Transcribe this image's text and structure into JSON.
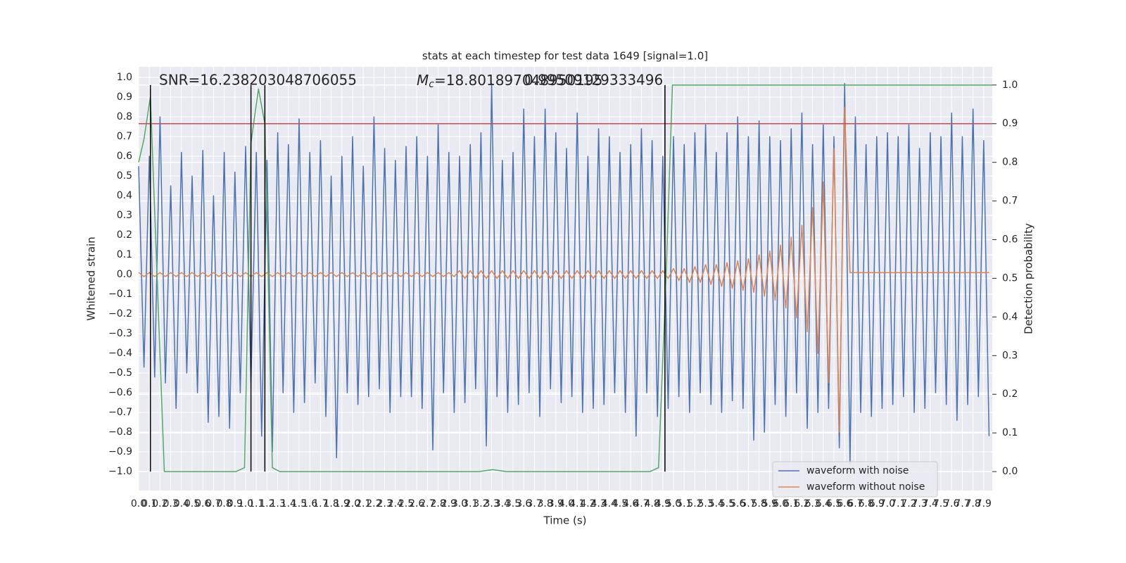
{
  "chart_data": {
    "type": "line",
    "title": "stats at each timestep for test data 1649 [signal=1.0]",
    "xlabel": "Time (s)",
    "ylabel": "Whitened strain",
    "y2label": "Detection probability",
    "annotations": [
      {
        "text": "SNR=16.238203048706055"
      },
      {
        "symbol": "M",
        "subscript": "c",
        "text": "=18.801897048950195"
      },
      {
        "text": "0.99509129333496"
      }
    ],
    "xlim": [
      0,
      7.98
    ],
    "ylim": [
      -1.096,
      1.054
    ],
    "y2lim": [
      -0.049,
      1.047
    ],
    "grid": true,
    "legend": "lower right",
    "xticks": [
      {
        "value": 0,
        "label": "0.0"
      },
      0.1,
      0.2,
      0.3,
      0.4,
      0.5,
      0.6,
      0.7,
      0.8,
      0.9,
      {
        "value": 1,
        "label": "1.0"
      },
      1.1,
      1.2,
      1.3,
      1.4,
      1.5,
      1.6,
      1.7,
      1.8,
      1.9,
      {
        "value": 2,
        "label": "2.0"
      },
      2.1,
      2.2,
      2.3,
      2.4,
      2.5,
      2.6,
      2.7,
      2.8,
      2.9,
      {
        "value": 3,
        "label": "3.0"
      },
      3.1,
      3.2,
      3.3,
      3.4,
      3.5,
      3.6,
      3.7,
      3.8,
      3.9,
      {
        "value": 4,
        "label": "4.0"
      },
      4.1,
      4.2,
      4.3,
      4.4,
      4.5,
      4.6,
      4.7,
      4.8,
      4.9,
      {
        "value": 5,
        "label": "5.0"
      },
      5.1,
      5.2,
      5.3,
      5.4,
      5.5,
      5.6,
      5.7,
      5.8,
      5.9,
      {
        "value": 6,
        "label": "6.0"
      },
      6.1,
      6.2,
      6.3,
      6.4,
      6.5,
      6.6,
      6.7,
      6.8,
      6.9,
      {
        "value": 7,
        "label": "7.0"
      },
      7.1,
      7.2,
      7.3,
      7.4,
      7.5,
      7.6,
      7.7,
      7.8,
      7.9
    ],
    "yticks": [
      {
        "value": -1,
        "label": "−1.0"
      },
      {
        "value": -0.9,
        "label": "−0.9"
      },
      {
        "value": -0.8,
        "label": "−0.8"
      },
      {
        "value": -0.7,
        "label": "−0.7"
      },
      {
        "value": -0.6,
        "label": "−0.6"
      },
      {
        "value": -0.5,
        "label": "−0.5"
      },
      {
        "value": -0.4,
        "label": "−0.4"
      },
      {
        "value": -0.3,
        "label": "−0.3"
      },
      {
        "value": -0.2,
        "label": "−0.2"
      },
      {
        "value": -0.1,
        "label": "−0.1"
      },
      {
        "value": 0,
        "label": "0.0"
      },
      0.1,
      0.2,
      0.3,
      0.4,
      0.5,
      0.6,
      0.7,
      0.8,
      0.9,
      {
        "value": 1,
        "label": "1.0"
      }
    ],
    "y2ticks": [
      {
        "value": 0,
        "label": "0.0"
      },
      0.1,
      0.2,
      0.3,
      0.4,
      0.5,
      0.6,
      0.7,
      0.8,
      0.9,
      {
        "value": 1,
        "label": "1.0"
      }
    ],
    "x": [
      0,
      0.05,
      0.1,
      0.15,
      0.2,
      0.25,
      0.3,
      0.35,
      0.4,
      0.45,
      0.5,
      0.55,
      0.6,
      0.65,
      0.7,
      0.75,
      0.8,
      0.85,
      0.9,
      0.95,
      1,
      1.05,
      1.1,
      1.15,
      1.2,
      1.25,
      1.3,
      1.35,
      1.4,
      1.45,
      1.5,
      1.55,
      1.6,
      1.65,
      1.7,
      1.75,
      1.8,
      1.85,
      1.9,
      1.95,
      2,
      2.05,
      2.1,
      2.15,
      2.2,
      2.25,
      2.3,
      2.35,
      2.4,
      2.45,
      2.5,
      2.55,
      2.6,
      2.65,
      2.7,
      2.75,
      2.8,
      2.85,
      2.9,
      2.95,
      3,
      3.05,
      3.1,
      3.15,
      3.2,
      3.25,
      3.3,
      3.35,
      3.4,
      3.45,
      3.5,
      3.55,
      3.6,
      3.65,
      3.7,
      3.75,
      3.8,
      3.85,
      3.9,
      3.95,
      4,
      4.05,
      4.1,
      4.15,
      4.2,
      4.25,
      4.3,
      4.35,
      4.4,
      4.45,
      4.5,
      4.55,
      4.6,
      4.65,
      4.7,
      4.75,
      4.8,
      4.85,
      4.9,
      4.95,
      5,
      5.05,
      5.1,
      5.15,
      5.2,
      5.25,
      5.3,
      5.35,
      5.4,
      5.45,
      5.5,
      5.55,
      5.6,
      5.65,
      5.7,
      5.75,
      5.8,
      5.85,
      5.9,
      5.95,
      6,
      6.05,
      6.1,
      6.15,
      6.2,
      6.25,
      6.3,
      6.35,
      6.4,
      6.45,
      6.5,
      6.55,
      6.6,
      6.65,
      6.7,
      6.75,
      6.8,
      6.85,
      6.9,
      6.95,
      7,
      7.05,
      7.1,
      7.15,
      7.2,
      7.25,
      7.3,
      7.35,
      7.4,
      7.45,
      7.5,
      7.55,
      7.6,
      7.65,
      7.7,
      7.75,
      7.8,
      7.85,
      7.9,
      7.95
    ],
    "series": [
      {
        "name": "waveform with noise",
        "color": "#4c72b0",
        "values": [
          0.55,
          -0.47,
          0.6,
          -0.52,
          0.8,
          -0.55,
          0.45,
          -0.68,
          0.62,
          -0.5,
          0.5,
          -0.6,
          0.63,
          -0.75,
          0.4,
          -0.72,
          0.62,
          -0.78,
          0.52,
          -0.6,
          0.65,
          -0.55,
          0.62,
          -0.82,
          0.58,
          -0.9,
          0.72,
          -0.6,
          0.66,
          -0.7,
          0.79,
          -0.65,
          0.62,
          -0.55,
          0.68,
          -0.72,
          0.5,
          -0.93,
          0.6,
          -0.6,
          0.7,
          -0.66,
          0.55,
          -0.62,
          0.8,
          -0.58,
          0.64,
          -0.7,
          0.58,
          -0.62,
          0.65,
          -0.62,
          0.7,
          -0.68,
          0.6,
          -0.89,
          0.76,
          -0.6,
          0.62,
          -0.7,
          0.6,
          -0.65,
          0.66,
          -0.58,
          0.72,
          -0.87,
          0.97,
          -0.62,
          0.58,
          -0.7,
          0.62,
          -0.66,
          0.84,
          -0.6,
          0.7,
          -0.72,
          0.84,
          -0.58,
          0.72,
          -0.65,
          0.64,
          -0.62,
          0.82,
          -0.7,
          0.6,
          -0.68,
          0.74,
          -0.66,
          0.7,
          -0.6,
          0.62,
          -0.7,
          0.66,
          -0.82,
          0.74,
          -0.6,
          0.68,
          -0.72,
          0.6,
          -0.68,
          0.7,
          -0.62,
          0.66,
          -0.7,
          0.72,
          -0.6,
          0.76,
          -0.66,
          0.62,
          -0.7,
          0.72,
          -0.64,
          0.8,
          -0.68,
          0.7,
          -0.84,
          0.78,
          -0.8,
          0.7,
          -0.66,
          0.68,
          -0.72,
          0.74,
          -0.6,
          0.82,
          -0.78,
          0.66,
          -0.7,
          0.76,
          -0.68,
          0.7,
          -0.88,
          0.97,
          -0.96,
          0.8,
          -0.7,
          0.66,
          -0.72,
          0.7,
          -0.68,
          0.72,
          -0.66,
          0.7,
          -0.62,
          0.76,
          -0.7,
          0.64,
          -0.68,
          0.72,
          -0.6,
          0.7,
          -0.66,
          0.82,
          -0.74,
          0.7,
          -0.66,
          0.84,
          -0.62,
          0.68,
          -0.82
        ]
      },
      {
        "name": "waveform without noise",
        "color": "#dd8452",
        "values": [
          0.01,
          -0.01,
          0.01,
          -0.01,
          0.01,
          -0.01,
          0.01,
          -0.01,
          0.01,
          -0.01,
          0.01,
          -0.01,
          0.01,
          -0.01,
          0.01,
          -0.01,
          0.01,
          -0.01,
          0.01,
          -0.01,
          0.01,
          -0.01,
          0.01,
          -0.01,
          0.01,
          -0.01,
          0.01,
          -0.01,
          0.01,
          -0.01,
          0.01,
          -0.01,
          0.01,
          -0.01,
          0.01,
          -0.01,
          0.01,
          -0.01,
          0.01,
          -0.01,
          0.01,
          -0.01,
          0.01,
          -0.01,
          0.01,
          -0.01,
          0.01,
          -0.01,
          0.01,
          -0.01,
          0.01,
          -0.01,
          0.01,
          -0.01,
          0.01,
          -0.01,
          0.01,
          -0.01,
          0.01,
          -0.01,
          0.02,
          -0.02,
          0.02,
          -0.02,
          0.02,
          -0.02,
          0.02,
          -0.02,
          0.02,
          -0.02,
          0.02,
          -0.02,
          0.02,
          -0.02,
          0.02,
          -0.02,
          0.02,
          -0.02,
          0.02,
          -0.02,
          0.02,
          -0.02,
          0.02,
          -0.02,
          0.02,
          -0.02,
          0.02,
          -0.02,
          0.02,
          -0.02,
          0.02,
          -0.02,
          0.02,
          -0.02,
          0.02,
          -0.02,
          0.02,
          -0.02,
          0.02,
          -0.02,
          0.03,
          -0.03,
          0.03,
          -0.04,
          0.04,
          -0.04,
          0.05,
          -0.05,
          0.05,
          -0.06,
          0.06,
          -0.07,
          0.07,
          -0.08,
          0.08,
          -0.09,
          0.1,
          -0.11,
          0.12,
          -0.13,
          0.15,
          -0.17,
          0.19,
          -0.22,
          0.25,
          -0.29,
          0.34,
          -0.4,
          0.47,
          -0.55,
          0.64,
          -0.8,
          0.85,
          0.01,
          0.01,
          0.01,
          0.01,
          0.01,
          0.01,
          0.01,
          0.01,
          0.01,
          0.01,
          0.01,
          0.01,
          0.01,
          0.01,
          0.01,
          0.01,
          0.01,
          0.01,
          0.01,
          0.01,
          0.01,
          0.01,
          0.01,
          0.01,
          0.01,
          0.01,
          0.01
        ]
      }
    ],
    "probability": {
      "color": "#55a868",
      "axis": "y2",
      "x": [
        0,
        0.05,
        0.11,
        0.24,
        0.91,
        0.99,
        1.05,
        1.12,
        1.18,
        1.25,
        1.32,
        3.18,
        3.31,
        3.44,
        4.78,
        4.86,
        4.93,
        4.99,
        7.98
      ],
      "values": [
        0.8,
        0.86,
        0.97,
        0,
        0,
        0.01,
        0.85,
        0.99,
        0.9,
        0.01,
        0,
        0,
        0.005,
        0,
        0,
        0.01,
        0.5,
        1,
        1
      ]
    },
    "threshold": {
      "value": 0.9,
      "color": "#c44e52",
      "axis": "y2"
    },
    "vlines": {
      "x": [
        0.11,
        1.05,
        1.18,
        4.92
      ],
      "color": "#000000"
    }
  }
}
